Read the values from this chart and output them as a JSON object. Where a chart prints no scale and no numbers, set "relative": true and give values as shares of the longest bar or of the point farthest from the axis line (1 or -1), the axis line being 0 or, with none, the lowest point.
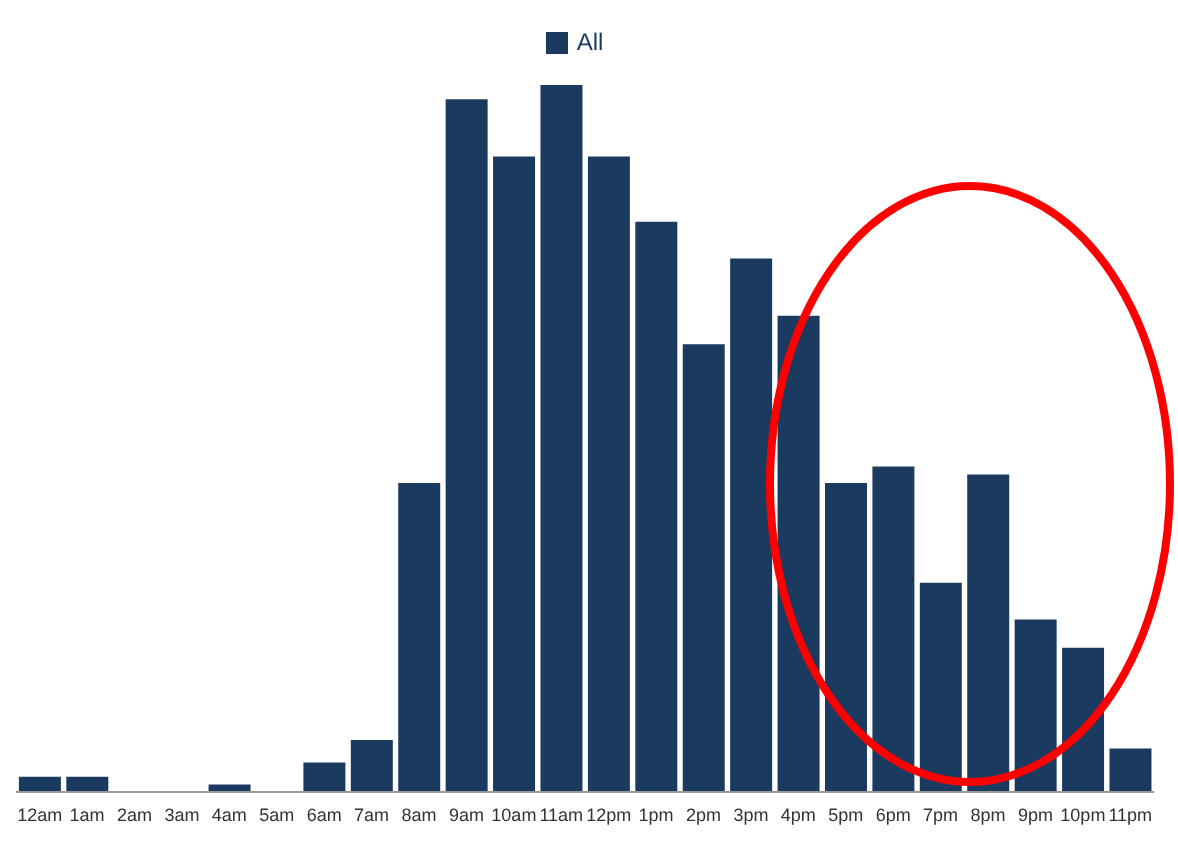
{
  "chart_data": {
    "type": "bar",
    "relative": true,
    "legend": "top",
    "grid": false,
    "categories": [
      "12am",
      "1am",
      "2am",
      "3am",
      "4am",
      "5am",
      "6am",
      "7am",
      "8am",
      "9am",
      "10am",
      "11am",
      "12pm",
      "1pm",
      "2pm",
      "3pm",
      "4pm",
      "5pm",
      "6pm",
      "7pm",
      "8pm",
      "9pm",
      "10pm",
      "11pm"
    ],
    "series": [
      {
        "name": "All",
        "color": "#1b3a5f",
        "values": [
          0.023,
          0.023,
          0,
          0,
          0.012,
          0,
          0.043,
          0.075,
          0.438,
          0.98,
          0.899,
          1,
          0.899,
          0.807,
          0.634,
          0.755,
          0.674,
          0.438,
          0.461,
          0.297,
          0.45,
          0.245,
          0.205,
          0.063
        ]
      }
    ]
  }
}
